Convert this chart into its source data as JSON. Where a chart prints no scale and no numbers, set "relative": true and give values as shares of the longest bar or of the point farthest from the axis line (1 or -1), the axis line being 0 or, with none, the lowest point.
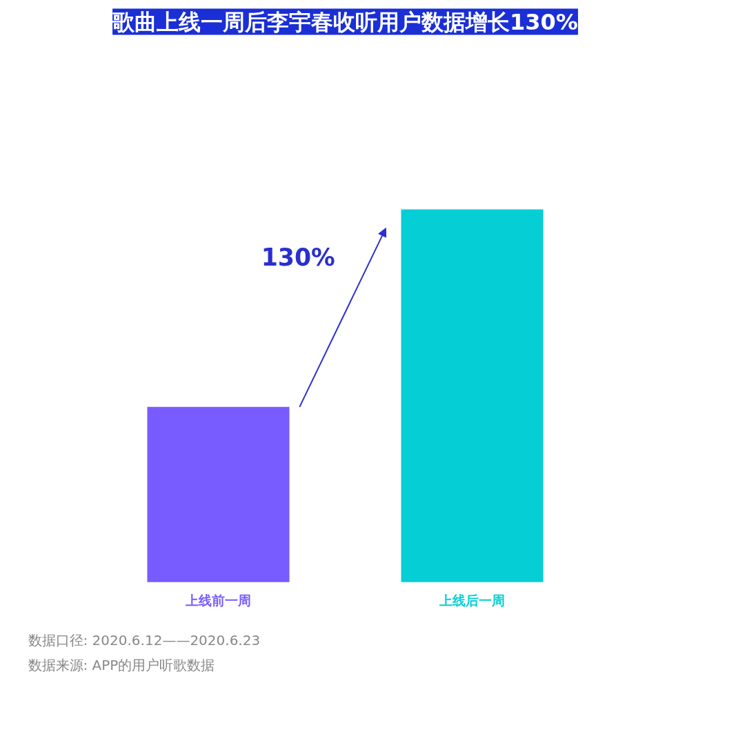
{
  "chart_data": {
    "type": "bar",
    "title": "歌曲上线一周后李宇春收听用户数据增长130%",
    "categories": [
      "上线前一周",
      "上线后一周"
    ],
    "values": [
      0.47,
      1
    ],
    "colors": [
      "#785cff",
      "#05cfd5"
    ],
    "relative": true,
    "grid": false,
    "annotations": [
      "130%",
      "数据来源: APP的用户听歌数据",
      "数据口径: 2020.6.12——2020.6.23"
    ]
  }
}
